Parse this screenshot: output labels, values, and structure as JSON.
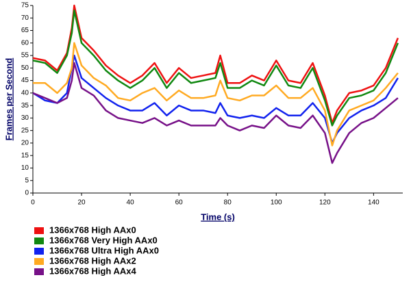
{
  "chart_data": {
    "type": "line",
    "xlabel": "Time (s)",
    "ylabel": "Frames per Second",
    "x": [
      0,
      5,
      10,
      14,
      16,
      17,
      20,
      25,
      30,
      35,
      40,
      45,
      50,
      55,
      60,
      65,
      70,
      75,
      77,
      80,
      85,
      90,
      95,
      100,
      105,
      110,
      115,
      120,
      123,
      125,
      130,
      135,
      140,
      145,
      150
    ],
    "series": [
      {
        "name": "1366x768 High AAx0",
        "color": "#ee1111",
        "values": [
          54,
          53,
          49,
          56,
          66,
          75,
          62,
          57,
          51,
          47,
          44,
          47,
          52,
          44,
          50,
          46,
          47,
          48,
          55,
          44,
          44,
          47,
          45,
          53,
          45,
          44,
          52,
          39,
          28,
          33,
          40,
          41,
          43,
          50,
          62
        ]
      },
      {
        "name": "1366x768 Very High AAx0",
        "color": "#118811",
        "values": [
          53,
          52,
          48,
          55,
          64,
          73,
          60,
          55,
          49,
          45,
          42,
          45,
          50,
          42,
          48,
          44,
          45,
          46,
          52,
          42,
          42,
          45,
          43,
          51,
          43,
          42,
          50,
          37,
          27,
          31,
          38,
          39,
          41,
          48,
          60
        ]
      },
      {
        "name": "1366x768 Ultra High AAx0",
        "color": "#1122ee",
        "values": [
          40,
          37,
          36,
          40,
          50,
          55,
          46,
          42,
          38,
          35,
          33,
          33,
          36,
          31,
          35,
          33,
          33,
          32,
          36,
          31,
          30,
          31,
          30,
          34,
          31,
          31,
          36,
          30,
          20,
          24,
          30,
          33,
          35,
          38,
          46
        ]
      },
      {
        "name": "1366x768 High AAx2",
        "color": "#ffaa22",
        "values": [
          44,
          44,
          40,
          44,
          50,
          60,
          51,
          46,
          43,
          38,
          37,
          40,
          42,
          37,
          41,
          38,
          38,
          39,
          45,
          38,
          37,
          39,
          39,
          43,
          38,
          38,
          42,
          33,
          19,
          25,
          33,
          35,
          37,
          42,
          48
        ]
      },
      {
        "name": "1366x768 High AAx4",
        "color": "#771188",
        "values": [
          40,
          38,
          36,
          38,
          45,
          52,
          42,
          39,
          33,
          30,
          29,
          28,
          30,
          27,
          29,
          27,
          27,
          27,
          30,
          27,
          25,
          27,
          26,
          31,
          27,
          26,
          31,
          24,
          12,
          16,
          24,
          28,
          30,
          34,
          38
        ]
      }
    ],
    "xlim": [
      0,
      152
    ],
    "xticks": [
      0,
      20,
      40,
      60,
      80,
      100,
      120,
      140
    ],
    "ylim": [
      0,
      75
    ],
    "yticks": [
      0,
      5,
      10,
      15,
      20,
      25,
      30,
      35,
      40,
      45,
      50,
      55,
      60,
      65,
      70,
      75
    ],
    "grid": false
  }
}
